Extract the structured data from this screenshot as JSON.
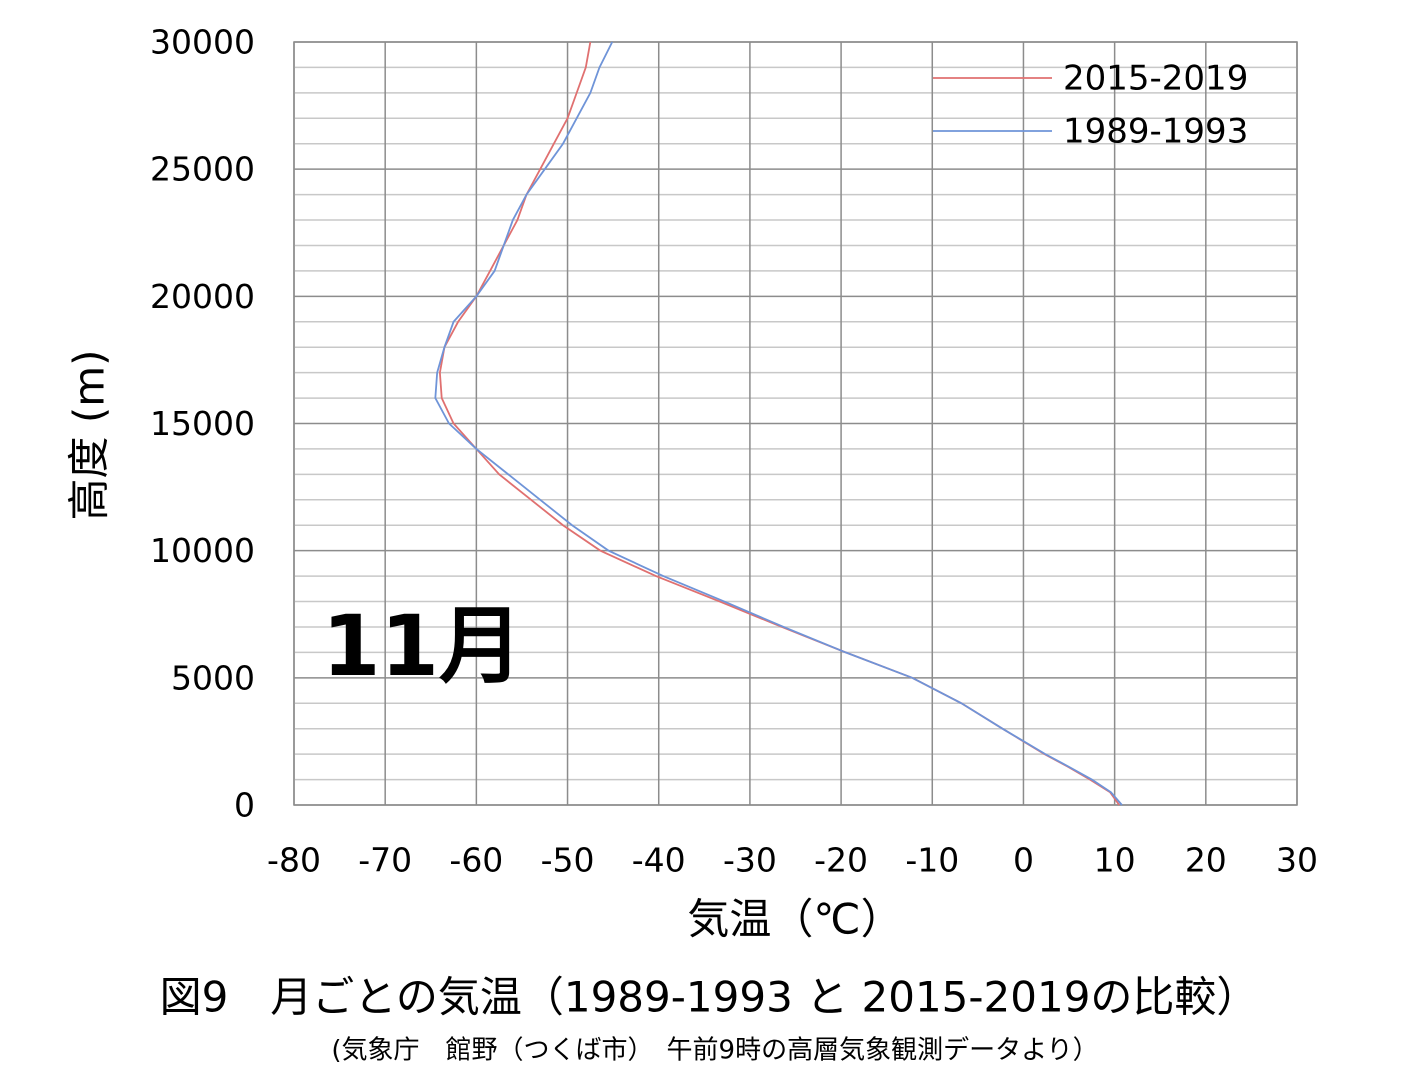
{
  "chart_data": {
    "type": "line",
    "title": "図9　月ごとの気温（1989-1993 と 2015-2019の比較）",
    "subtitle": "(気象庁　館野（つくば市）　午前9時の高層気象観測データより）",
    "annotation": "11月",
    "x_label": "気温（℃）",
    "y_label": "高度 (m)",
    "xlim": [
      -80,
      30
    ],
    "xticks": [
      -80,
      -70,
      -60,
      -50,
      -40,
      -30,
      -20,
      -10,
      0,
      10,
      20,
      30
    ],
    "ylim": [
      0,
      30000
    ],
    "yticks": [
      0,
      5000,
      10000,
      15000,
      20000,
      25000,
      30000
    ],
    "yminorticks": [
      1000,
      2000,
      3000,
      4000,
      6000,
      7000,
      8000,
      9000,
      11000,
      12000,
      13000,
      14000,
      16000,
      17000,
      18000,
      19000,
      21000,
      22000,
      23000,
      24000,
      26000,
      27000,
      28000,
      29000
    ],
    "grid": true,
    "legend": "upper right",
    "series": [
      {
        "name": "2015-2019",
        "color": "#e07070",
        "values": [
          0,
          500,
          1000,
          1500,
          2000,
          3000,
          4000,
          5000,
          6000,
          7000,
          8000,
          9000,
          10000,
          11000,
          12000,
          13000,
          14000,
          15000,
          16000,
          17000,
          18000,
          19000,
          20000,
          21000,
          22000,
          23000,
          24000,
          25000,
          26000,
          27000,
          28000,
          29000,
          30000
        ],
        "x": [
          10.5,
          9.5,
          7.3,
          4.9,
          2.3,
          -2.3,
          -6.8,
          -12.2,
          -19.5,
          -26.5,
          -33.3,
          -40.3,
          -46.4,
          -50.5,
          -54,
          -57.5,
          -60,
          -62.5,
          -63.8,
          -64,
          -63.5,
          -62,
          -60,
          -58.5,
          -57,
          -55.5,
          -54.5,
          -53,
          -51.5,
          -50,
          -49,
          -48,
          -47.5
        ]
      },
      {
        "name": "1989-1993",
        "color": "#6f94d8",
        "values": [
          0,
          500,
          1000,
          1500,
          2000,
          3000,
          4000,
          5000,
          6000,
          7000,
          8000,
          9000,
          10000,
          11000,
          12000,
          13000,
          14000,
          15000,
          16000,
          17000,
          18000,
          19000,
          20000,
          21000,
          22000,
          23000,
          24000,
          25000,
          26000,
          27000,
          28000,
          29000,
          30000
        ],
        "x": [
          10.8,
          9.6,
          7.5,
          5.0,
          2.4,
          -2.3,
          -6.8,
          -12.2,
          -19.5,
          -26.3,
          -32.8,
          -39.5,
          -45.5,
          -49.5,
          -53,
          -56.5,
          -60,
          -63,
          -64.5,
          -64.3,
          -63.5,
          -62.5,
          -60,
          -58,
          -57,
          -56,
          -54.5,
          -52.5,
          -50.5,
          -49,
          -47.5,
          -46.5,
          -45.1
        ]
      }
    ]
  }
}
